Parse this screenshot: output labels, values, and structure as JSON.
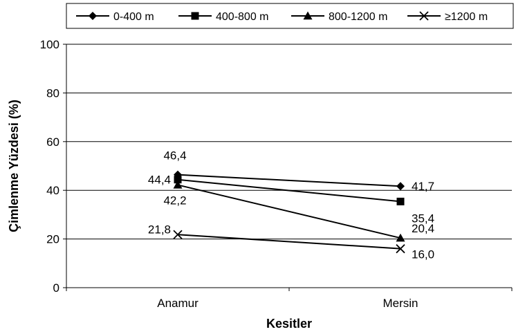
{
  "chart_data": {
    "type": "line",
    "title": "",
    "xlabel": "Kesitler",
    "ylabel": "Çimlenme Yüzdesi (%)",
    "categories": [
      "Anamur",
      "Mersin"
    ],
    "ylim": [
      0,
      100
    ],
    "yticks": [
      "0",
      "20",
      "40",
      "60",
      "80",
      "100"
    ],
    "grid": true,
    "legend_position": "top",
    "series": [
      {
        "name": "0-400 m",
        "marker": "diamond",
        "values": [
          46.4,
          41.7
        ],
        "labels": [
          "46,4",
          "41,7"
        ]
      },
      {
        "name": "400-800 m",
        "marker": "square",
        "values": [
          44.4,
          35.4
        ],
        "labels": [
          "44,4",
          "35,4"
        ]
      },
      {
        "name": "800-1200 m",
        "marker": "triangle",
        "values": [
          42.2,
          20.4
        ],
        "labels": [
          "42,2",
          "20,4"
        ]
      },
      {
        "name": "≥1200 m",
        "marker": "x",
        "values": [
          21.8,
          16.0
        ],
        "labels": [
          "21,8",
          "16,0"
        ]
      }
    ],
    "line_color": "#000000",
    "background_color": "#ffffff"
  }
}
